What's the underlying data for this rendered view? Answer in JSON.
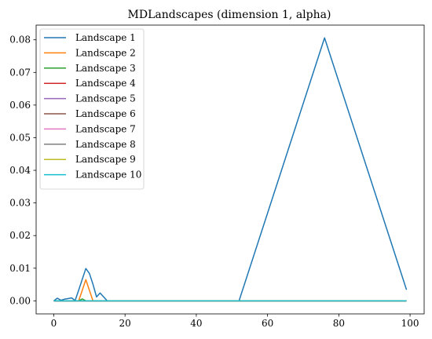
{
  "chart_data": {
    "type": "line",
    "title": "MDLandscapes (dimension 1, alpha)",
    "xlabel": "",
    "ylabel": "",
    "xlim": [
      -4.95,
      103.95
    ],
    "ylim": [
      -0.004,
      0.0845
    ],
    "xticks": [
      0,
      20,
      40,
      60,
      80,
      100
    ],
    "yticks": [
      0.0,
      0.01,
      0.02,
      0.03,
      0.04,
      0.05,
      0.06,
      0.07,
      0.08
    ],
    "ytick_labels": [
      "0.00",
      "0.01",
      "0.02",
      "0.03",
      "0.04",
      "0.05",
      "0.06",
      "0.07",
      "0.08"
    ],
    "grid": false,
    "legend_position": "top-left",
    "series": [
      {
        "name": "Landscape 1",
        "color": "#1f77b4",
        "x": [
          0,
          1,
          2,
          3,
          4,
          5,
          6,
          7,
          8,
          9,
          10,
          11,
          12,
          13,
          14,
          15,
          52,
          76,
          99
        ],
        "y": [
          0.0,
          0.0008,
          0.0002,
          0.0005,
          0.0007,
          0.0009,
          0.0001,
          0.0033,
          0.0066,
          0.0099,
          0.0084,
          0.0051,
          0.0012,
          0.0024,
          0.0012,
          0.0,
          0.0,
          0.0806,
          0.0034
        ]
      },
      {
        "name": "Landscape 2",
        "color": "#ff7f0e",
        "x": [
          0,
          7,
          9,
          11,
          99
        ],
        "y": [
          0.0,
          0.0,
          0.0065,
          0.0,
          0.0
        ]
      },
      {
        "name": "Landscape 3",
        "color": "#2ca02c",
        "x": [
          0,
          7,
          8,
          9,
          99
        ],
        "y": [
          0.0,
          0.0,
          0.0006,
          0.0,
          0.0
        ]
      },
      {
        "name": "Landscape 4",
        "color": "#d62728",
        "x": [
          0,
          99
        ],
        "y": [
          0.0,
          0.0
        ]
      },
      {
        "name": "Landscape 5",
        "color": "#9467bd",
        "x": [
          0,
          99
        ],
        "y": [
          0.0,
          0.0
        ]
      },
      {
        "name": "Landscape 6",
        "color": "#8c564b",
        "x": [
          0,
          99
        ],
        "y": [
          0.0,
          0.0
        ]
      },
      {
        "name": "Landscape 7",
        "color": "#e377c2",
        "x": [
          0,
          99
        ],
        "y": [
          0.0,
          0.0
        ]
      },
      {
        "name": "Landscape 8",
        "color": "#7f7f7f",
        "x": [
          0,
          99
        ],
        "y": [
          0.0,
          0.0
        ]
      },
      {
        "name": "Landscape 9",
        "color": "#bcbd22",
        "x": [
          0,
          99
        ],
        "y": [
          0.0,
          0.0
        ]
      },
      {
        "name": "Landscape 10",
        "color": "#17becf",
        "x": [
          0,
          99
        ],
        "y": [
          0.0,
          0.0
        ]
      }
    ]
  }
}
